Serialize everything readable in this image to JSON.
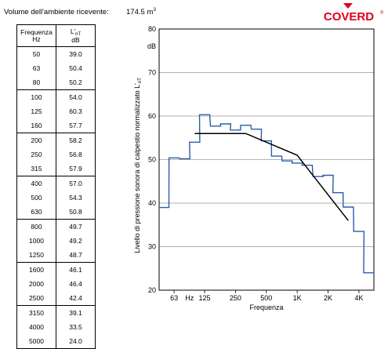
{
  "header": {
    "volume_label": "Volume dell'ambiente ricevente:",
    "volume_value": "174.5 m",
    "volume_unit_sup": "3"
  },
  "logo": {
    "text": "COVERD",
    "registered": "®",
    "color": "#e0001b"
  },
  "table": {
    "col1_header_line1": "Frequenza",
    "col1_header_line2": "Hz",
    "col2_header_main": "L'",
    "col2_header_sub": "nT",
    "col2_header_unit": "dB",
    "rows": [
      [
        "50",
        "39.0"
      ],
      [
        "63",
        "50.4"
      ],
      [
        "80",
        "50.2"
      ],
      [
        "100",
        "54.0"
      ],
      [
        "125",
        "60.3"
      ],
      [
        "160",
        "57.7"
      ],
      [
        "200",
        "58.2"
      ],
      [
        "250",
        "56.8"
      ],
      [
        "315",
        "57.9"
      ],
      [
        "400",
        "57.0"
      ],
      [
        "500",
        "54.3"
      ],
      [
        "630",
        "50.8"
      ],
      [
        "800",
        "49.7"
      ],
      [
        "1000",
        "49.2"
      ],
      [
        "1250",
        "48.7"
      ],
      [
        "1600",
        "46.1"
      ],
      [
        "2000",
        "46.4"
      ],
      [
        "2500",
        "42.4"
      ],
      [
        "3150",
        "39.1"
      ],
      [
        "4000",
        "33.5"
      ],
      [
        "5000",
        "24.0"
      ]
    ]
  },
  "chart_data": {
    "type": "line",
    "title": "",
    "xlabel": "Frequenza",
    "ylabel": "Livello di pressione sonora di calpestio normalizzato L'",
    "ylabel_sub": "nT",
    "yunit": "dB",
    "x_unit_label": "Hz",
    "x_scale": "log",
    "xlim": [
      45,
      5600
    ],
    "ylim": [
      20,
      80
    ],
    "y_ticks": [
      20,
      30,
      40,
      50,
      60,
      70,
      80
    ],
    "x_ticks": [
      {
        "freq": 63,
        "label": "63"
      },
      {
        "freq": 125,
        "label": "125"
      },
      {
        "freq": 250,
        "label": "250"
      },
      {
        "freq": 500,
        "label": "500"
      },
      {
        "freq": 1000,
        "label": "1K"
      },
      {
        "freq": 2000,
        "label": "2K"
      },
      {
        "freq": 4000,
        "label": "4K"
      }
    ],
    "series": [
      {
        "style": "step",
        "color": "#2b5fa8",
        "x": [
          50,
          63,
          80,
          100,
          125,
          160,
          200,
          250,
          315,
          400,
          500,
          630,
          800,
          1000,
          1250,
          1600,
          2000,
          2500,
          3150,
          4000,
          5000
        ],
        "values": [
          39.0,
          50.4,
          50.2,
          54.0,
          60.3,
          57.7,
          58.2,
          56.8,
          57.9,
          57.0,
          54.3,
          50.8,
          49.7,
          49.2,
          48.7,
          46.1,
          46.4,
          42.4,
          39.1,
          33.5,
          24.0
        ]
      },
      {
        "style": "line",
        "color": "#000000",
        "x": [
          100,
          315,
          1000,
          3150
        ],
        "values": [
          56,
          56,
          51,
          36
        ]
      }
    ],
    "grid": "horizontal"
  }
}
